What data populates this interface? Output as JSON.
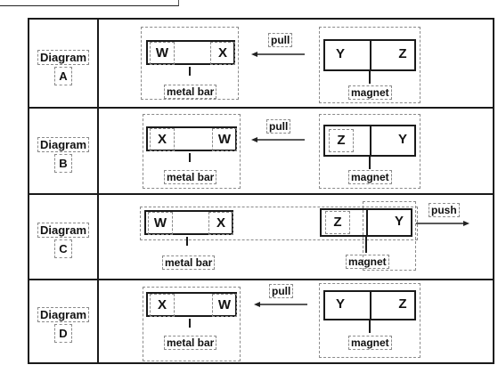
{
  "diagrams": [
    {
      "label_word": "Diagram",
      "label_letter": "A",
      "bar_left": "W",
      "bar_right": "X",
      "mag_left": "Y",
      "mag_right": "Z",
      "bar_caption": "metal bar",
      "mag_caption": "magnet",
      "force": "pull",
      "arrow": "left"
    },
    {
      "label_word": "Diagram",
      "label_letter": "B",
      "bar_left": "X",
      "bar_right": "W",
      "mag_left": "Z",
      "mag_right": "Y",
      "bar_caption": "metal bar",
      "mag_caption": "magnet",
      "force": "pull",
      "arrow": "left"
    },
    {
      "label_word": "Diagram",
      "label_letter": "C",
      "bar_left": "W",
      "bar_right": "X",
      "mag_left": "Z",
      "mag_right": "Y",
      "bar_caption": "metal bar",
      "mag_caption": "magnet",
      "force": "push",
      "arrow": "right"
    },
    {
      "label_word": "Diagram",
      "label_letter": "D",
      "bar_left": "X",
      "bar_right": "W",
      "mag_left": "Y",
      "mag_right": "Z",
      "bar_caption": "metal bar",
      "mag_caption": "magnet",
      "force": "pull",
      "arrow": "left"
    }
  ]
}
